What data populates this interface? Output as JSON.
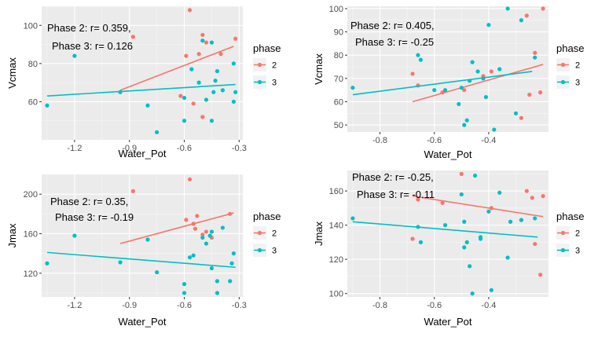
{
  "colors": {
    "phase2": "#F8766D",
    "phase3": "#00BFC4",
    "panel_bg": "#EBEBEB",
    "grid": "#FFFFFF"
  },
  "legend": {
    "title": "phase",
    "items": [
      "2",
      "3"
    ]
  },
  "chart_data": [
    {
      "type": "scatter",
      "xlabel": "Water_Pot",
      "ylabel": "Vcmax",
      "xlim": [
        -1.38,
        -0.28
      ],
      "ylim": [
        40,
        110
      ],
      "xticks": [
        -1.2,
        -0.9,
        -0.6,
        -0.3
      ],
      "yticks": [
        60,
        80,
        100
      ],
      "xtick_labels": [
        "-1.2",
        "-0.9",
        "-0.6",
        "-0.3"
      ],
      "ytick_labels": [
        "60",
        "80",
        "100"
      ],
      "annotations": [
        "Phase 2: r= 0.359,",
        "Phase 3: r= 0.126"
      ],
      "series": [
        {
          "name": "2",
          "points": [
            [
              -0.88,
              94
            ],
            [
              -0.57,
              108
            ],
            [
              -0.59,
              84
            ],
            [
              -0.5,
              95
            ],
            [
              -0.52,
              85
            ],
            [
              -0.55,
              59
            ],
            [
              -0.48,
              91
            ],
            [
              -0.4,
              85
            ],
            [
              -0.32,
              93
            ],
            [
              -0.5,
              52
            ],
            [
              -0.62,
              63
            ]
          ],
          "trend": [
            [
              -0.95,
              66
            ],
            [
              -0.33,
              89
            ]
          ]
        },
        {
          "name": "3",
          "points": [
            [
              -1.35,
              58
            ],
            [
              -1.2,
              84
            ],
            [
              -0.95,
              65
            ],
            [
              -0.8,
              58
            ],
            [
              -0.75,
              44
            ],
            [
              -0.6,
              50
            ],
            [
              -0.6,
              62
            ],
            [
              -0.56,
              77
            ],
            [
              -0.5,
              92
            ],
            [
              -0.48,
              61
            ],
            [
              -0.45,
              91
            ],
            [
              -0.44,
              65
            ],
            [
              -0.43,
              71
            ],
            [
              -0.42,
              76
            ],
            [
              -0.39,
              66
            ],
            [
              -0.33,
              60
            ],
            [
              -0.33,
              80
            ],
            [
              -0.32,
              65
            ],
            [
              -0.45,
              50
            ],
            [
              -0.52,
              70
            ]
          ],
          "trend": [
            [
              -1.35,
              63
            ],
            [
              -0.32,
              69
            ]
          ]
        }
      ]
    },
    {
      "type": "scatter",
      "xlabel": "Water_Pot",
      "ylabel": "Vcmax",
      "xlim": [
        -0.92,
        -0.18
      ],
      "ylim": [
        47,
        101
      ],
      "xticks": [
        -0.8,
        -0.6,
        -0.4
      ],
      "yticks": [
        50,
        60,
        70,
        80,
        90,
        100
      ],
      "xtick_labels": [
        "-0.8",
        "-0.6",
        "-0.4"
      ],
      "ytick_labels": [
        "50",
        "60",
        "70",
        "80",
        "90",
        "100"
      ],
      "annotations": [
        "Phase 2: r= 0.405,",
        "Phase 3: r= -0.25"
      ],
      "series": [
        {
          "name": "2",
          "points": [
            [
              -0.68,
              72
            ],
            [
              -0.66,
              67
            ],
            [
              -0.57,
              64
            ],
            [
              -0.42,
              71
            ],
            [
              -0.39,
              73
            ],
            [
              -0.25,
              63
            ],
            [
              -0.23,
              81
            ],
            [
              -0.21,
              64
            ],
            [
              -0.28,
              53
            ],
            [
              -0.26,
              97
            ],
            [
              -0.2,
              100
            ],
            [
              -0.49,
              65
            ]
          ],
          "trend": [
            [
              -0.68,
              60
            ],
            [
              -0.2,
              76
            ]
          ]
        },
        {
          "name": "3",
          "points": [
            [
              -0.9,
              66
            ],
            [
              -0.66,
              80
            ],
            [
              -0.65,
              78
            ],
            [
              -0.6,
              65
            ],
            [
              -0.56,
              65
            ],
            [
              -0.51,
              59
            ],
            [
              -0.5,
              66
            ],
            [
              -0.49,
              50
            ],
            [
              -0.48,
              52
            ],
            [
              -0.46,
              77
            ],
            [
              -0.44,
              73
            ],
            [
              -0.42,
              70
            ],
            [
              -0.41,
              62
            ],
            [
              -0.4,
              93
            ],
            [
              -0.38,
              48
            ],
            [
              -0.36,
              74
            ],
            [
              -0.33,
              100
            ],
            [
              -0.3,
              55
            ],
            [
              -0.28,
              95
            ],
            [
              -0.23,
              79
            ],
            [
              -0.47,
              69
            ]
          ],
          "trend": [
            [
              -0.9,
              63
            ],
            [
              -0.24,
              73
            ]
          ]
        }
      ]
    },
    {
      "type": "scatter",
      "xlabel": "Water_Pot",
      "ylabel": "Jmax",
      "xlim": [
        -1.38,
        -0.28
      ],
      "ylim": [
        96,
        220
      ],
      "xticks": [
        -1.2,
        -0.9,
        -0.6,
        -0.3
      ],
      "yticks": [
        120,
        160,
        200
      ],
      "xtick_labels": [
        "-1.2",
        "-0.9",
        "-0.6",
        "-0.3"
      ],
      "ytick_labels": [
        "120",
        "160",
        "200"
      ],
      "annotations": [
        "Phase 2: r= 0.35,",
        "Phase 3: r= -0.19"
      ],
      "series": [
        {
          "name": "2",
          "points": [
            [
              -0.88,
              203
            ],
            [
              -0.57,
              215
            ],
            [
              -0.59,
              174
            ],
            [
              -0.55,
              170
            ],
            [
              -0.53,
              178
            ],
            [
              -0.5,
              159
            ],
            [
              -0.48,
              162
            ],
            [
              -0.45,
              156
            ],
            [
              -0.35,
              180
            ],
            [
              -0.54,
              165
            ]
          ],
          "trend": [
            [
              -0.95,
              150
            ],
            [
              -0.33,
              181
            ]
          ]
        },
        {
          "name": "3",
          "points": [
            [
              -1.35,
              130
            ],
            [
              -1.2,
              158
            ],
            [
              -0.95,
              131
            ],
            [
              -0.8,
              154
            ],
            [
              -0.75,
              121
            ],
            [
              -0.6,
              109
            ],
            [
              -0.6,
              100
            ],
            [
              -0.57,
              136
            ],
            [
              -0.55,
              138
            ],
            [
              -0.5,
              156
            ],
            [
              -0.48,
              150
            ],
            [
              -0.46,
              158
            ],
            [
              -0.45,
              162
            ],
            [
              -0.45,
              125
            ],
            [
              -0.42,
              112
            ],
            [
              -0.42,
              100
            ],
            [
              -0.39,
              166
            ],
            [
              -0.35,
              112
            ],
            [
              -0.33,
              140
            ],
            [
              -0.34,
              130
            ]
          ],
          "trend": [
            [
              -1.35,
              141
            ],
            [
              -0.32,
              126
            ]
          ]
        }
      ]
    },
    {
      "type": "scatter",
      "xlabel": "Water_Pot",
      "ylabel": "Jmax",
      "xlim": [
        -0.92,
        -0.18
      ],
      "ylim": [
        98,
        172
      ],
      "xticks": [
        -0.8,
        -0.6,
        -0.4
      ],
      "yticks": [
        100,
        120,
        140,
        160
      ],
      "xtick_labels": [
        "-0.8",
        "-0.6",
        "-0.4"
      ],
      "ytick_labels": [
        "100",
        "120",
        "140",
        "160"
      ],
      "annotations": [
        "Phase 2: r= -0.25,",
        "Phase 3: r= -0.11"
      ],
      "series": [
        {
          "name": "2",
          "points": [
            [
              -0.68,
              132
            ],
            [
              -0.66,
              155
            ],
            [
              -0.57,
              153
            ],
            [
              -0.39,
              150
            ],
            [
              -0.26,
              160
            ],
            [
              -0.24,
              156
            ],
            [
              -0.2,
              157
            ],
            [
              -0.23,
              129
            ],
            [
              -0.21,
              111
            ],
            [
              -0.28,
              143
            ],
            [
              -0.5,
              170
            ]
          ],
          "trend": [
            [
              -0.68,
              157
            ],
            [
              -0.2,
              145
            ]
          ]
        },
        {
          "name": "3",
          "points": [
            [
              -0.9,
              144
            ],
            [
              -0.66,
              139
            ],
            [
              -0.65,
              130
            ],
            [
              -0.56,
              140
            ],
            [
              -0.5,
              158
            ],
            [
              -0.49,
              142
            ],
            [
              -0.49,
              127
            ],
            [
              -0.48,
              130
            ],
            [
              -0.47,
              116
            ],
            [
              -0.46,
              100
            ],
            [
              -0.45,
              169
            ],
            [
              -0.43,
              132
            ],
            [
              -0.43,
              133
            ],
            [
              -0.4,
              148
            ],
            [
              -0.39,
              102
            ],
            [
              -0.36,
              159
            ],
            [
              -0.33,
              121
            ],
            [
              -0.32,
              142
            ],
            [
              -0.28,
              143
            ],
            [
              -0.23,
              144
            ]
          ],
          "trend": [
            [
              -0.9,
              142
            ],
            [
              -0.22,
              133
            ]
          ]
        }
      ]
    }
  ]
}
